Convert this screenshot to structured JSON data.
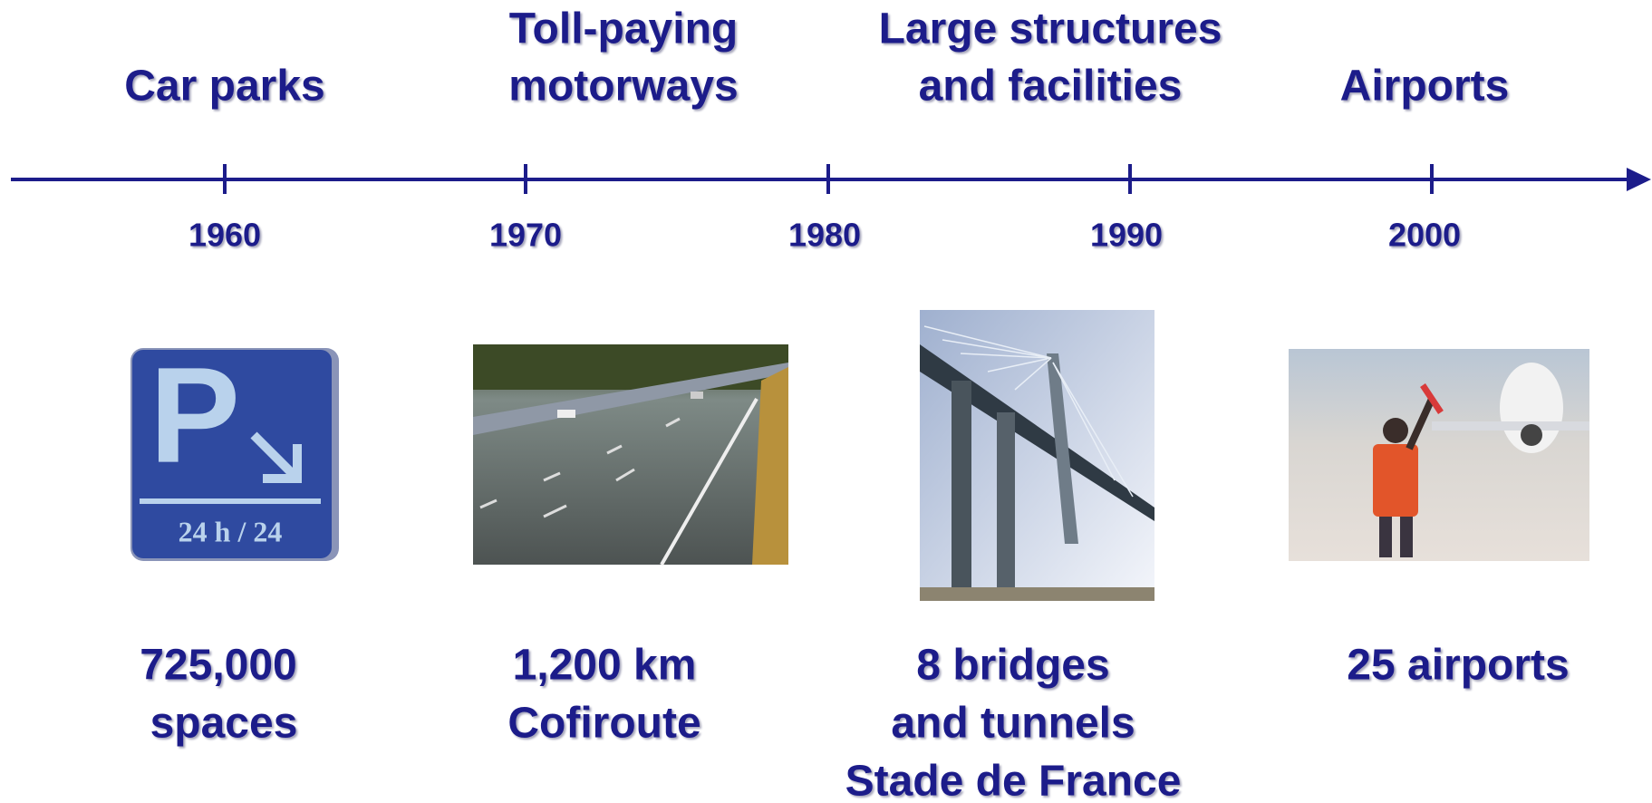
{
  "timeline": {
    "ticks": [
      "1960",
      "1970",
      "1980",
      "1990",
      "2000"
    ]
  },
  "sections": [
    {
      "heading": [
        "Car parks"
      ],
      "caption": [
        "725,000",
        "spaces"
      ],
      "sign": {
        "letter": "P",
        "hours": "24 h / 24"
      }
    },
    {
      "heading": [
        "Toll-paying",
        "motorways"
      ],
      "caption": [
        "1,200 km",
        "Cofiroute"
      ]
    },
    {
      "heading": [
        "Large structures",
        "and facilities"
      ],
      "caption": [
        "8 bridges",
        "and tunnels",
        "Stade de France"
      ]
    },
    {
      "heading": [
        "Airports"
      ],
      "caption": [
        "25 airports"
      ]
    }
  ]
}
